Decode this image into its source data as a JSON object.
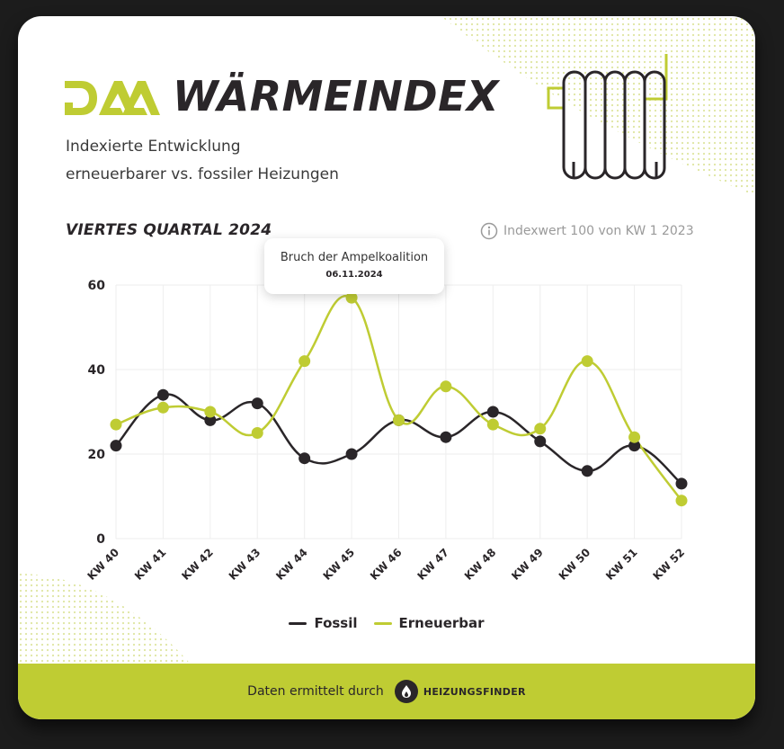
{
  "header": {
    "logo_text": "DAA",
    "title": "WÄRMEINDEX",
    "subtitle_line1": "Indexierte Entwicklung",
    "subtitle_line2": "erneuerbarer vs. fossiler Heizungen"
  },
  "section": {
    "period": "VIERTES QUARTAL 2024",
    "info_text": "Indexwert 100 von KW 1 2023"
  },
  "tooltip": {
    "title": "Bruch der Ampelkoalition",
    "date": "06.11.2024"
  },
  "legend": {
    "fossil": "Fossil",
    "renewable": "Erneuerbar"
  },
  "footer": {
    "text": "Daten ermittelt durch",
    "brand": "HEIZUNGSFINDER"
  },
  "colors": {
    "fossil": "#2a2629",
    "renewable": "#bfcc33",
    "grid": "#eeeeee",
    "footer_bg": "#bfcc33"
  },
  "chart_data": {
    "type": "line",
    "title": "VIERTES QUARTAL 2024",
    "subtitle": "Indexwert 100 von KW 1 2023",
    "categories": [
      "KW 40",
      "KW 41",
      "KW 42",
      "KW 43",
      "KW 44",
      "KW 45",
      "KW 46",
      "KW 47",
      "KW 48",
      "KW 49",
      "KW 50",
      "KW 51",
      "KW 52"
    ],
    "series": [
      {
        "name": "Fossil",
        "color": "#2a2629",
        "values": [
          22,
          34,
          28,
          32,
          19,
          20,
          28,
          24,
          30,
          23,
          16,
          22,
          13
        ]
      },
      {
        "name": "Erneuerbar",
        "color": "#bfcc33",
        "values": [
          27,
          31,
          30,
          25,
          42,
          57,
          28,
          36,
          27,
          26,
          42,
          24,
          9
        ]
      }
    ],
    "yticks": [
      0,
      20,
      40,
      60
    ],
    "ylim": [
      0,
      60
    ],
    "xlabel": "",
    "ylabel": "",
    "grid": true,
    "legend_position": "bottom",
    "annotations": [
      {
        "category": "KW 45",
        "text": "Bruch der Ampelkoalition",
        "date": "06.11.2024"
      }
    ]
  }
}
